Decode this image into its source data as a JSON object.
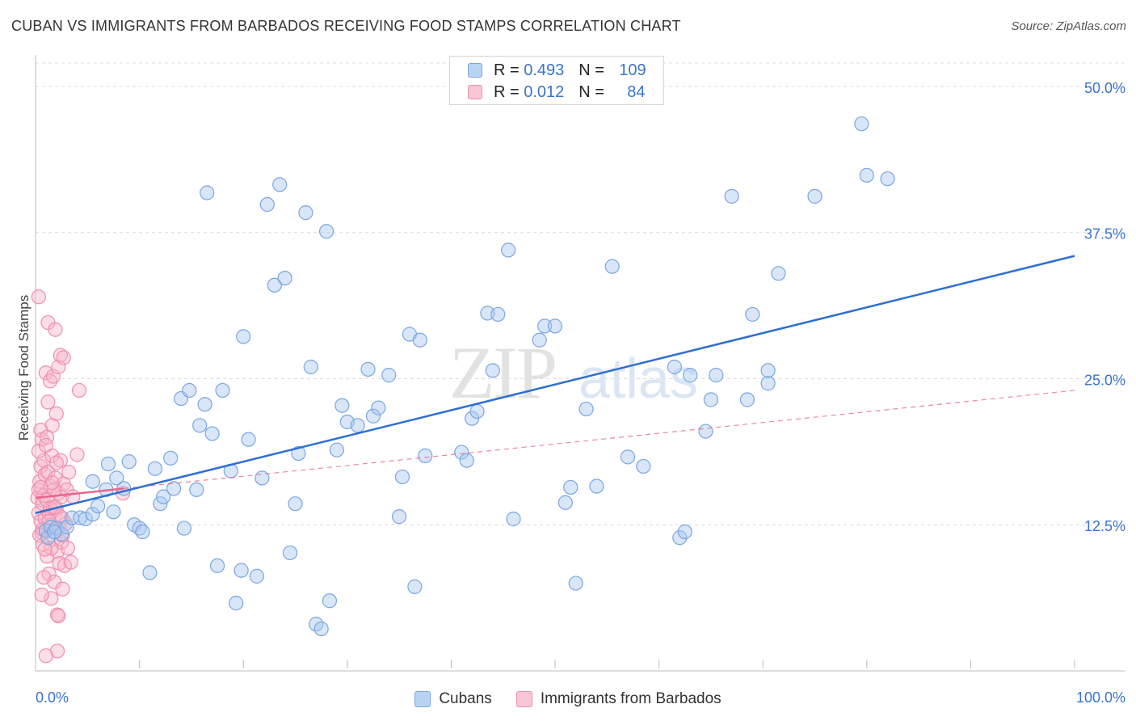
{
  "header": {
    "title": "CUBAN VS IMMIGRANTS FROM BARBADOS RECEIVING FOOD STAMPS CORRELATION CHART",
    "source": "Source: ZipAtlas.com"
  },
  "legend": {
    "series": [
      {
        "r_label": "R =",
        "r_value": "0.493",
        "n_label": "N =",
        "n_value": "109"
      },
      {
        "r_label": "R =",
        "r_value": "0.012",
        "n_label": "N =",
        "n_value": "84"
      }
    ]
  },
  "watermark": {
    "zip": "ZIP",
    "atlas": "atlas"
  },
  "colors": {
    "blue_fill": "#a8c8f0",
    "blue_stroke": "#7aa6e0",
    "blue_line": "#2d6fd0",
    "pink_fill": "#f7b6c9",
    "pink_stroke": "#ef8fae",
    "pink_line": "#e8668e",
    "grid": "#dcdcdc",
    "tick_label": "#3a74c9"
  },
  "chart_data": {
    "type": "scatter",
    "title": "CUBAN VS IMMIGRANTS FROM BARBADOS RECEIVING FOOD STAMPS CORRELATION CHART",
    "xlabel": "",
    "ylabel": "Receiving Food Stamps",
    "xlim": [
      0,
      100
    ],
    "ylim": [
      0,
      52
    ],
    "x_tick_labels": [
      "0.0%",
      "100.0%"
    ],
    "y_ticks": [
      12.5,
      25.0,
      37.5,
      50.0
    ],
    "y_tick_labels": [
      "12.5%",
      "25.0%",
      "37.5%",
      "50.0%"
    ],
    "grid": true,
    "legend_position": "bottom-center",
    "series": [
      {
        "name": "Cubans",
        "color": "#a8c8f0",
        "trend": {
          "x": [
            0,
            100
          ],
          "y": [
            13.5,
            35.5
          ],
          "style": "solid"
        },
        "points": [
          [
            1.0,
            12.0
          ],
          [
            1.2,
            11.4
          ],
          [
            1.5,
            12.3
          ],
          [
            2.0,
            12.2
          ],
          [
            2.5,
            11.7
          ],
          [
            3.0,
            12.3
          ],
          [
            3.5,
            13.1
          ],
          [
            4.3,
            13.1
          ],
          [
            4.8,
            13.0
          ],
          [
            5.5,
            13.4
          ],
          [
            5.5,
            16.2
          ],
          [
            6.0,
            14.1
          ],
          [
            6.8,
            15.5
          ],
          [
            7.0,
            17.7
          ],
          [
            7.5,
            13.6
          ],
          [
            7.8,
            16.5
          ],
          [
            8.5,
            15.6
          ],
          [
            9.0,
            17.9
          ],
          [
            9.5,
            12.5
          ],
          [
            10.0,
            12.2
          ],
          [
            10.3,
            11.9
          ],
          [
            11.0,
            8.4
          ],
          [
            11.5,
            17.3
          ],
          [
            12.0,
            14.3
          ],
          [
            12.3,
            14.9
          ],
          [
            13.0,
            18.2
          ],
          [
            13.3,
            15.6
          ],
          [
            14.0,
            23.3
          ],
          [
            14.3,
            12.2
          ],
          [
            14.8,
            24.0
          ],
          [
            15.5,
            15.5
          ],
          [
            15.8,
            21.0
          ],
          [
            16.3,
            22.8
          ],
          [
            16.5,
            40.9
          ],
          [
            17.0,
            20.3
          ],
          [
            17.5,
            9.0
          ],
          [
            18.0,
            24.0
          ],
          [
            18.8,
            17.1
          ],
          [
            19.3,
            5.8
          ],
          [
            19.8,
            8.6
          ],
          [
            20.0,
            28.6
          ],
          [
            20.5,
            19.8
          ],
          [
            21.3,
            8.1
          ],
          [
            21.8,
            16.5
          ],
          [
            22.3,
            39.9
          ],
          [
            23.0,
            33.0
          ],
          [
            23.5,
            41.6
          ],
          [
            24.0,
            33.6
          ],
          [
            24.5,
            10.1
          ],
          [
            25.0,
            14.3
          ],
          [
            25.3,
            18.6
          ],
          [
            26.0,
            39.2
          ],
          [
            26.5,
            26.0
          ],
          [
            27.0,
            4.0
          ],
          [
            27.5,
            3.6
          ],
          [
            28.0,
            37.6
          ],
          [
            28.3,
            6.0
          ],
          [
            29.0,
            18.9
          ],
          [
            29.5,
            22.7
          ],
          [
            30.0,
            21.3
          ],
          [
            31.0,
            21.0
          ],
          [
            32.0,
            25.8
          ],
          [
            32.5,
            21.8
          ],
          [
            33.0,
            22.5
          ],
          [
            34.0,
            25.3
          ],
          [
            35.0,
            13.2
          ],
          [
            35.3,
            16.6
          ],
          [
            36.0,
            28.8
          ],
          [
            36.5,
            7.2
          ],
          [
            37.0,
            28.3
          ],
          [
            37.5,
            18.4
          ],
          [
            41.0,
            18.7
          ],
          [
            41.5,
            18.0
          ],
          [
            42.0,
            21.6
          ],
          [
            42.5,
            22.2
          ],
          [
            43.5,
            30.6
          ],
          [
            44.0,
            25.7
          ],
          [
            44.5,
            30.5
          ],
          [
            45.5,
            36.0
          ],
          [
            46.0,
            13.0
          ],
          [
            48.5,
            28.3
          ],
          [
            49.0,
            29.5
          ],
          [
            50.0,
            29.5
          ],
          [
            51.0,
            14.4
          ],
          [
            51.5,
            15.7
          ],
          [
            52.0,
            7.5
          ],
          [
            53.0,
            22.4
          ],
          [
            54.0,
            15.8
          ],
          [
            55.5,
            34.6
          ],
          [
            57.0,
            18.3
          ],
          [
            58.5,
            17.5
          ],
          [
            61.5,
            26.0
          ],
          [
            62.0,
            11.4
          ],
          [
            62.5,
            11.9
          ],
          [
            63.0,
            25.3
          ],
          [
            64.5,
            20.5
          ],
          [
            65.0,
            23.2
          ],
          [
            65.5,
            25.3
          ],
          [
            67.0,
            40.6
          ],
          [
            68.5,
            23.2
          ],
          [
            69.0,
            30.5
          ],
          [
            70.5,
            24.6
          ],
          [
            70.5,
            25.7
          ],
          [
            71.5,
            34.0
          ],
          [
            75.0,
            40.6
          ],
          [
            79.5,
            46.8
          ],
          [
            80.0,
            42.4
          ],
          [
            82.0,
            42.1
          ],
          [
            1.8,
            11.9
          ]
        ]
      },
      {
        "name": "Immigrants from Barbados",
        "color": "#f7b6c9",
        "trend": {
          "x": [
            0,
            8.5
          ],
          "y": [
            14.8,
            15.6
          ],
          "style": "solid"
        },
        "trend_extended": {
          "x": [
            8.5,
            100
          ],
          "y": [
            15.6,
            24.0
          ],
          "style": "dashed"
        },
        "points": [
          [
            0.2,
            14.8
          ],
          [
            0.3,
            15.5
          ],
          [
            0.3,
            13.5
          ],
          [
            0.4,
            16.2
          ],
          [
            0.5,
            12.8
          ],
          [
            0.5,
            17.5
          ],
          [
            0.6,
            11.8
          ],
          [
            0.6,
            19.8
          ],
          [
            0.7,
            14.3
          ],
          [
            0.7,
            10.8
          ],
          [
            0.8,
            18.0
          ],
          [
            0.8,
            15.0
          ],
          [
            0.9,
            13.0
          ],
          [
            0.9,
            16.8
          ],
          [
            1.0,
            12.0
          ],
          [
            1.0,
            25.5
          ],
          [
            1.1,
            14.6
          ],
          [
            1.1,
            9.8
          ],
          [
            1.2,
            17.0
          ],
          [
            1.2,
            29.8
          ],
          [
            1.3,
            13.5
          ],
          [
            1.3,
            8.3
          ],
          [
            1.4,
            15.8
          ],
          [
            1.4,
            24.8
          ],
          [
            1.5,
            12.5
          ],
          [
            1.5,
            6.2
          ],
          [
            1.6,
            18.4
          ],
          [
            1.6,
            21.0
          ],
          [
            1.7,
            14.0
          ],
          [
            1.7,
            25.2
          ],
          [
            1.8,
            11.3
          ],
          [
            1.8,
            7.6
          ],
          [
            1.9,
            16.5
          ],
          [
            1.9,
            29.2
          ],
          [
            2.0,
            13.8
          ],
          [
            2.0,
            22.0
          ],
          [
            2.1,
            10.2
          ],
          [
            2.1,
            4.8
          ],
          [
            2.2,
            15.2
          ],
          [
            2.2,
            26.0
          ],
          [
            2.3,
            12.2
          ],
          [
            2.3,
            9.2
          ],
          [
            2.4,
            18.0
          ],
          [
            2.4,
            27.0
          ],
          [
            2.5,
            14.9
          ],
          [
            2.5,
            11.0
          ],
          [
            2.6,
            13.0
          ],
          [
            2.6,
            7.0
          ],
          [
            2.7,
            16.0
          ],
          [
            2.8,
            9.0
          ],
          [
            2.9,
            12.6
          ],
          [
            3.0,
            15.5
          ],
          [
            3.2,
            17.0
          ],
          [
            3.4,
            9.3
          ],
          [
            3.6,
            14.9
          ],
          [
            4.0,
            18.5
          ],
          [
            4.2,
            24.0
          ],
          [
            0.3,
            32.0
          ],
          [
            1.2,
            23.0
          ],
          [
            2.1,
            1.7
          ],
          [
            1.0,
            1.3
          ],
          [
            1.5,
            10.5
          ],
          [
            0.8,
            8.0
          ],
          [
            2.7,
            26.8
          ],
          [
            0.4,
            11.6
          ],
          [
            0.6,
            6.5
          ],
          [
            1.8,
            15.5
          ],
          [
            2.2,
            4.7
          ],
          [
            0.5,
            20.6
          ],
          [
            1.1,
            20.0
          ],
          [
            1.4,
            13.9
          ],
          [
            0.9,
            10.4
          ],
          [
            2.0,
            17.8
          ],
          [
            0.7,
            12.1
          ],
          [
            1.6,
            16.1
          ],
          [
            2.4,
            13.2
          ],
          [
            0.3,
            18.8
          ],
          [
            1.3,
            12.8
          ],
          [
            3.1,
            10.5
          ],
          [
            0.5,
            15.7
          ],
          [
            1.9,
            14.0
          ],
          [
            2.6,
            11.6
          ],
          [
            1.0,
            19.3
          ],
          [
            8.4,
            15.2
          ]
        ]
      }
    ]
  },
  "bottom_legend": {
    "items": [
      {
        "label": "Cubans"
      },
      {
        "label": "Immigrants from Barbados"
      }
    ]
  }
}
